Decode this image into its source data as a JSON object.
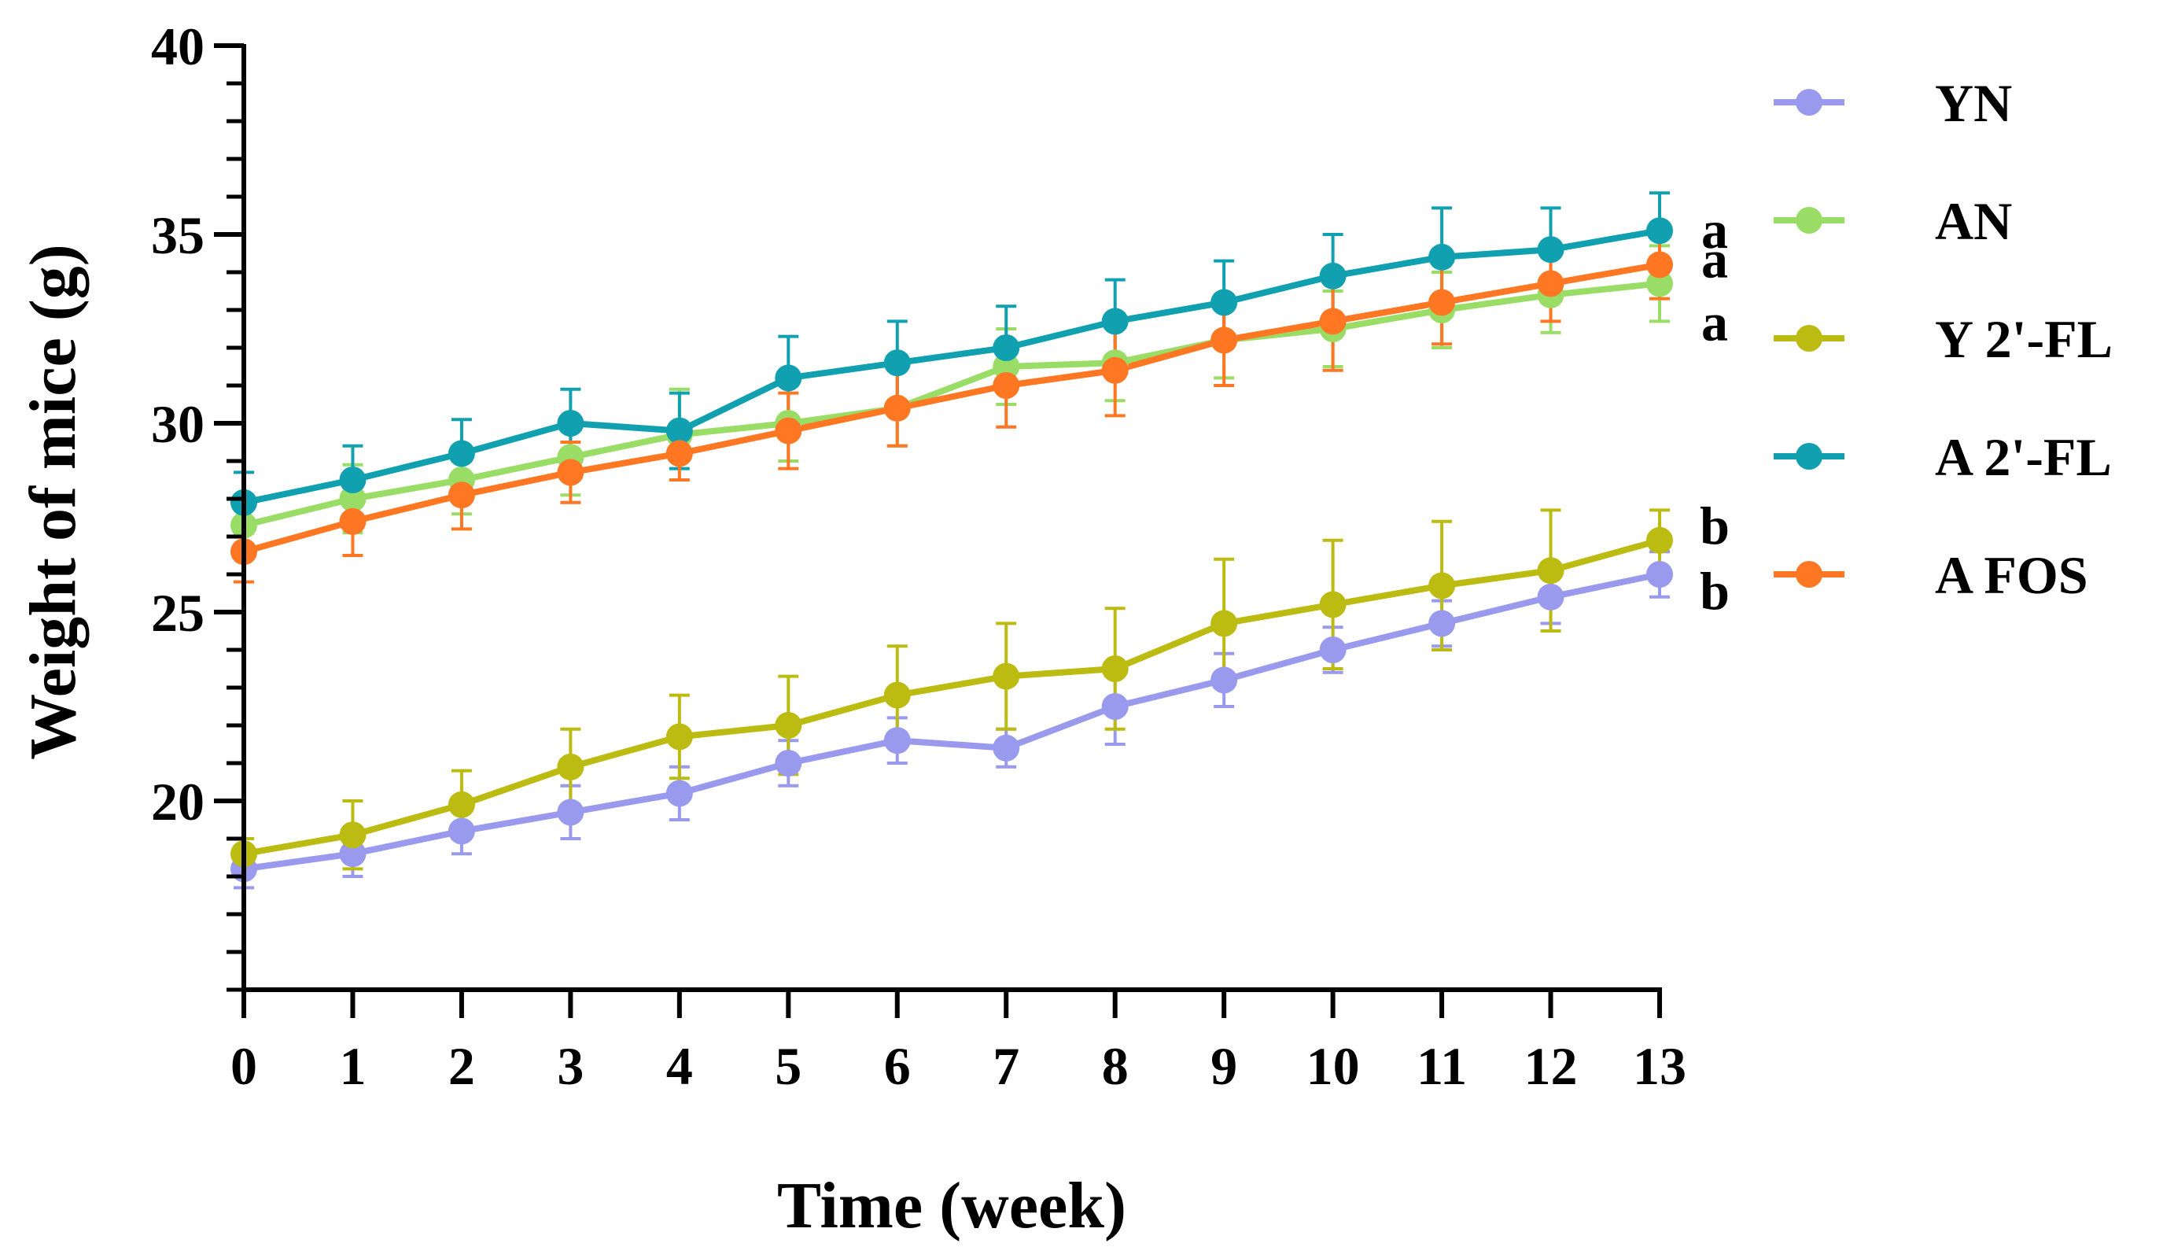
{
  "chart_data": {
    "type": "line",
    "title": "",
    "xlabel": "Time (week)",
    "ylabel": "Weight of mice (g)",
    "x": [
      0,
      1,
      2,
      3,
      4,
      5,
      6,
      7,
      8,
      9,
      10,
      11,
      12,
      13
    ],
    "xlim": [
      0,
      13
    ],
    "ylim": [
      15,
      40
    ],
    "yticks": [
      20,
      25,
      30,
      35,
      40
    ],
    "yminor_ticks": [
      15,
      16,
      17,
      18,
      19,
      21,
      22,
      23,
      24,
      26,
      27,
      28,
      29,
      31,
      32,
      33,
      34,
      36,
      37,
      38,
      39
    ],
    "grid": false,
    "legend_position": "right",
    "series": [
      {
        "name": "YN",
        "color": "#9999ee",
        "values": [
          18.2,
          18.6,
          19.2,
          19.7,
          20.2,
          21.0,
          21.6,
          21.4,
          22.5,
          23.2,
          24.0,
          24.7,
          25.4,
          26.0
        ],
        "errors": [
          0.5,
          0.6,
          0.6,
          0.7,
          0.7,
          0.6,
          0.6,
          0.5,
          1.0,
          0.7,
          0.6,
          0.6,
          0.7,
          0.6
        ],
        "significance": "b"
      },
      {
        "name": "AN",
        "color": "#99dd66",
        "values": [
          27.3,
          28.0,
          28.5,
          29.1,
          29.7,
          30.0,
          30.4,
          31.5,
          31.6,
          32.2,
          32.5,
          33.0,
          33.4,
          33.7
        ],
        "errors": [
          0.8,
          0.9,
          0.9,
          1.0,
          1.2,
          1.0,
          1.0,
          1.0,
          1.0,
          1.0,
          1.0,
          1.0,
          1.0,
          1.0
        ],
        "significance": "a"
      },
      {
        "name": "Y 2'-FL",
        "color": "#bbbb11",
        "values": [
          18.6,
          19.1,
          19.9,
          20.9,
          21.7,
          22.0,
          22.8,
          23.3,
          23.5,
          24.7,
          25.2,
          25.7,
          26.1,
          26.9
        ],
        "errors": [
          0.4,
          0.9,
          0.9,
          1.0,
          1.1,
          1.3,
          1.3,
          1.4,
          1.6,
          1.7,
          1.7,
          1.7,
          1.6,
          0.8
        ],
        "significance": "b"
      },
      {
        "name": "A 2'-FL",
        "color": "#11a0b0",
        "values": [
          27.9,
          28.5,
          29.2,
          30.0,
          29.8,
          31.2,
          31.6,
          32.0,
          32.7,
          33.2,
          33.9,
          34.4,
          34.6,
          35.1
        ],
        "errors": [
          0.8,
          0.9,
          0.9,
          0.9,
          1.0,
          1.1,
          1.1,
          1.1,
          1.1,
          1.1,
          1.1,
          1.3,
          1.1,
          1.0
        ],
        "significance": "a"
      },
      {
        "name": "A FOS",
        "color": "#ff7722",
        "values": [
          26.6,
          27.4,
          28.1,
          28.7,
          29.2,
          29.8,
          30.4,
          31.0,
          31.4,
          32.2,
          32.7,
          33.2,
          33.7,
          34.2
        ],
        "errors": [
          0.8,
          0.9,
          0.9,
          0.8,
          0.7,
          1.0,
          1.0,
          1.1,
          1.2,
          1.2,
          1.3,
          1.1,
          1.0,
          0.9
        ],
        "significance": "a"
      }
    ]
  }
}
